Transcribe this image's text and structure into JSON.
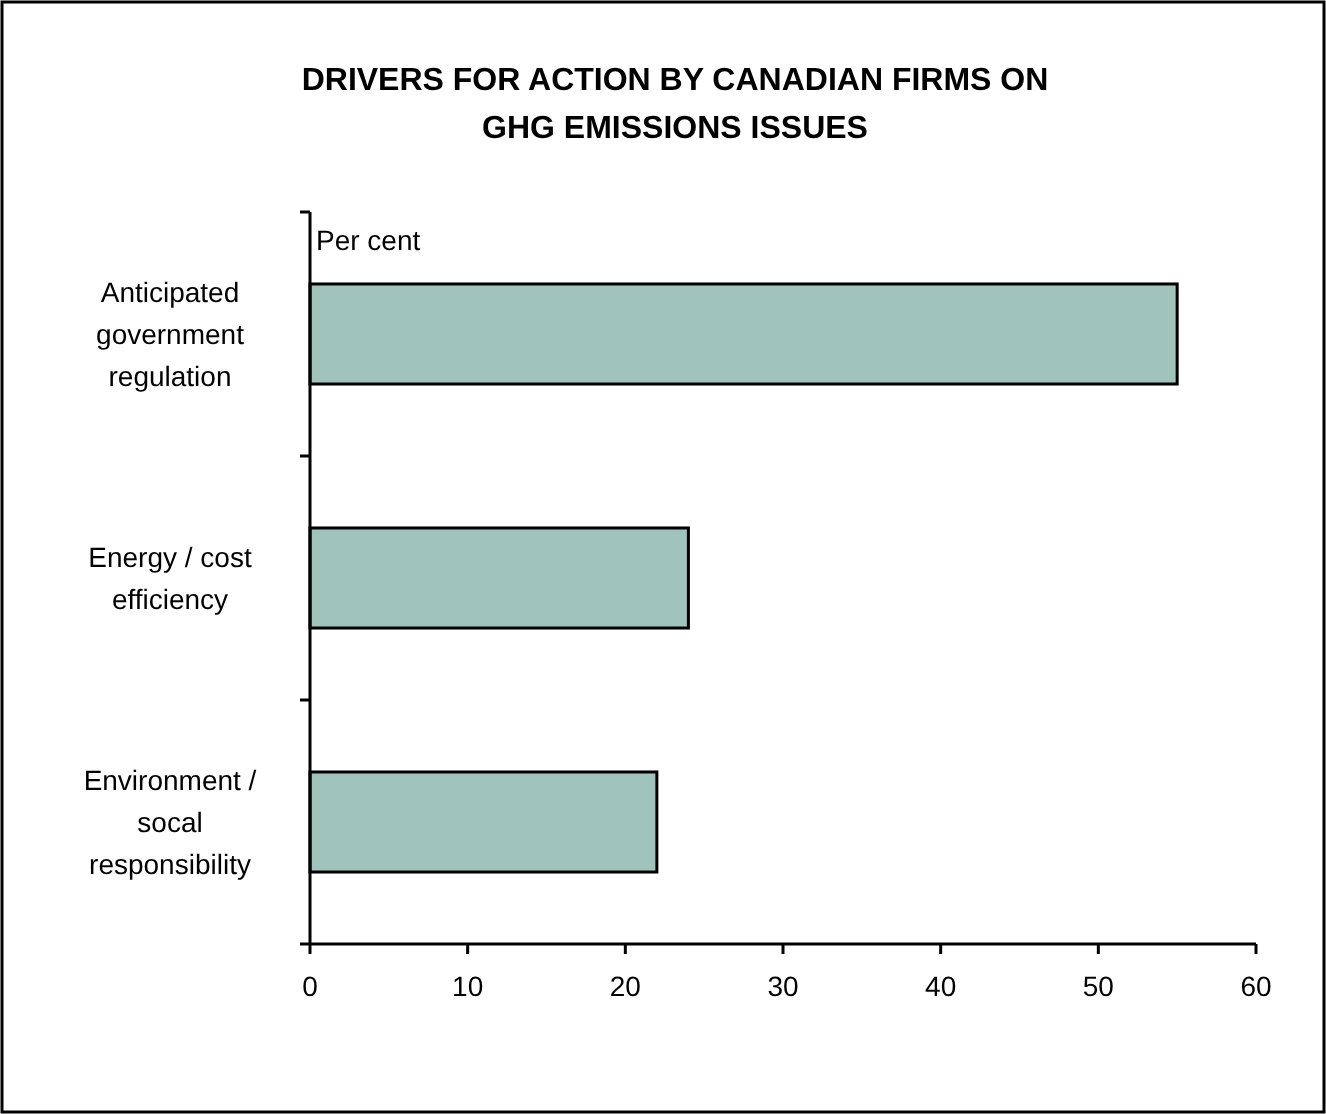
{
  "chart_data": {
    "type": "bar",
    "orientation": "horizontal",
    "title": "DRIVERS FOR ACTION BY CANADIAN FIRMS ON GHG EMISSIONS ISSUES",
    "xlabel": "Per cent",
    "categories": [
      "Anticipated government regulation",
      "Energy / cost efficiency",
      "Environment / socal responsibility"
    ],
    "values": [
      55,
      24,
      22
    ],
    "color": "#a0c4bc",
    "xlim": [
      0,
      60
    ],
    "xticks": [
      0,
      10,
      20,
      30,
      40,
      50,
      60
    ],
    "grid": false
  }
}
